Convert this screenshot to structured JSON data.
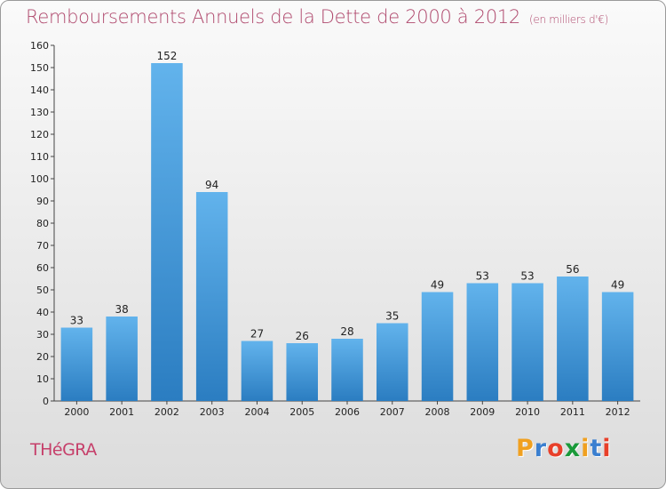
{
  "title": "Remboursements Annuels de la Dette de 2000 à 2012",
  "unit": "(en milliers d'€)",
  "town": "THéGRA",
  "brand": {
    "letters": [
      "P",
      "r",
      "o",
      "x",
      "i",
      "t",
      "i"
    ],
    "colors": [
      "#f0a020",
      "#3a7fd0",
      "#e8402a",
      "#1a9a3a",
      "#f0a020",
      "#3a7fd0",
      "#e8402a"
    ]
  },
  "colors": {
    "title": "#b04a6e",
    "town": "#c63f6a",
    "bar_top": "#62b3ec",
    "bar_bottom": "#2b7dc1"
  },
  "chart_data": {
    "type": "bar",
    "categories": [
      "2000",
      "2001",
      "2002",
      "2003",
      "2004",
      "2005",
      "2006",
      "2007",
      "2008",
      "2009",
      "2010",
      "2011",
      "2012"
    ],
    "values": [
      33,
      38,
      152,
      94,
      27,
      26,
      28,
      35,
      49,
      53,
      53,
      56,
      49
    ],
    "title": "Remboursements Annuels de la Dette de 2000 à 2012",
    "xlabel": "",
    "ylabel": "",
    "ylim": [
      0,
      160
    ],
    "yticks": [
      0,
      10,
      20,
      30,
      40,
      50,
      60,
      70,
      80,
      90,
      100,
      110,
      120,
      130,
      140,
      150,
      160
    ],
    "grid": false,
    "data_labels": true
  }
}
